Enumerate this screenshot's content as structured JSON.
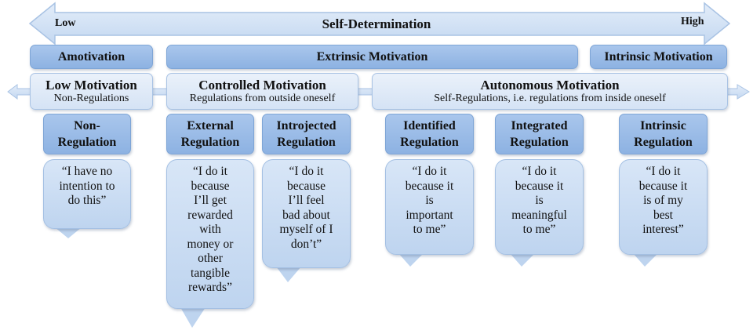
{
  "scale": {
    "title": "Self-Determination",
    "low": "Low",
    "high": "High"
  },
  "categories": {
    "amotivation": "Amotivation",
    "extrinsic": "Extrinsic Motivation",
    "intrinsic": "Intrinsic Motivation"
  },
  "motivation_types": {
    "low": {
      "title": "Low Motivation",
      "subtitle": "Non-Regulations"
    },
    "controlled": {
      "title": "Controlled Motivation",
      "subtitle": "Regulations from outside oneself"
    },
    "autonomous": {
      "title": "Autonomous Motivation",
      "subtitle": "Self-Regulations, i.e. regulations from inside oneself"
    }
  },
  "regulations": [
    {
      "name": "Non-\nRegulation",
      "quote": "“I have no\nintention to\ndo this”"
    },
    {
      "name": "External\nRegulation",
      "quote": "“I do it\nbecause\nI’ll get\nrewarded\nwith\nmoney or\nother\ntangible\nrewards”"
    },
    {
      "name": "Introjected\nRegulation",
      "quote": "“I do it\nbecause\nI’ll feel\nbad about\nmyself of I\ndon’t”"
    },
    {
      "name": "Identified\nRegulation",
      "quote": "“I do it\nbecause it\nis\nimportant\nto me”"
    },
    {
      "name": "Integrated\nRegulation",
      "quote": "“I do it\nbecause it\nis\nmeaningful\nto me”"
    },
    {
      "name": "Intrinsic\nRegulation",
      "quote": "“I do it\nbecause it\nis of my\nbest\ninterest”"
    }
  ],
  "colors": {
    "dark_box": "#8db2e2",
    "light_box": "#dbe7f6",
    "callout": "#c8dbf2",
    "border": "#7ea5d6"
  }
}
